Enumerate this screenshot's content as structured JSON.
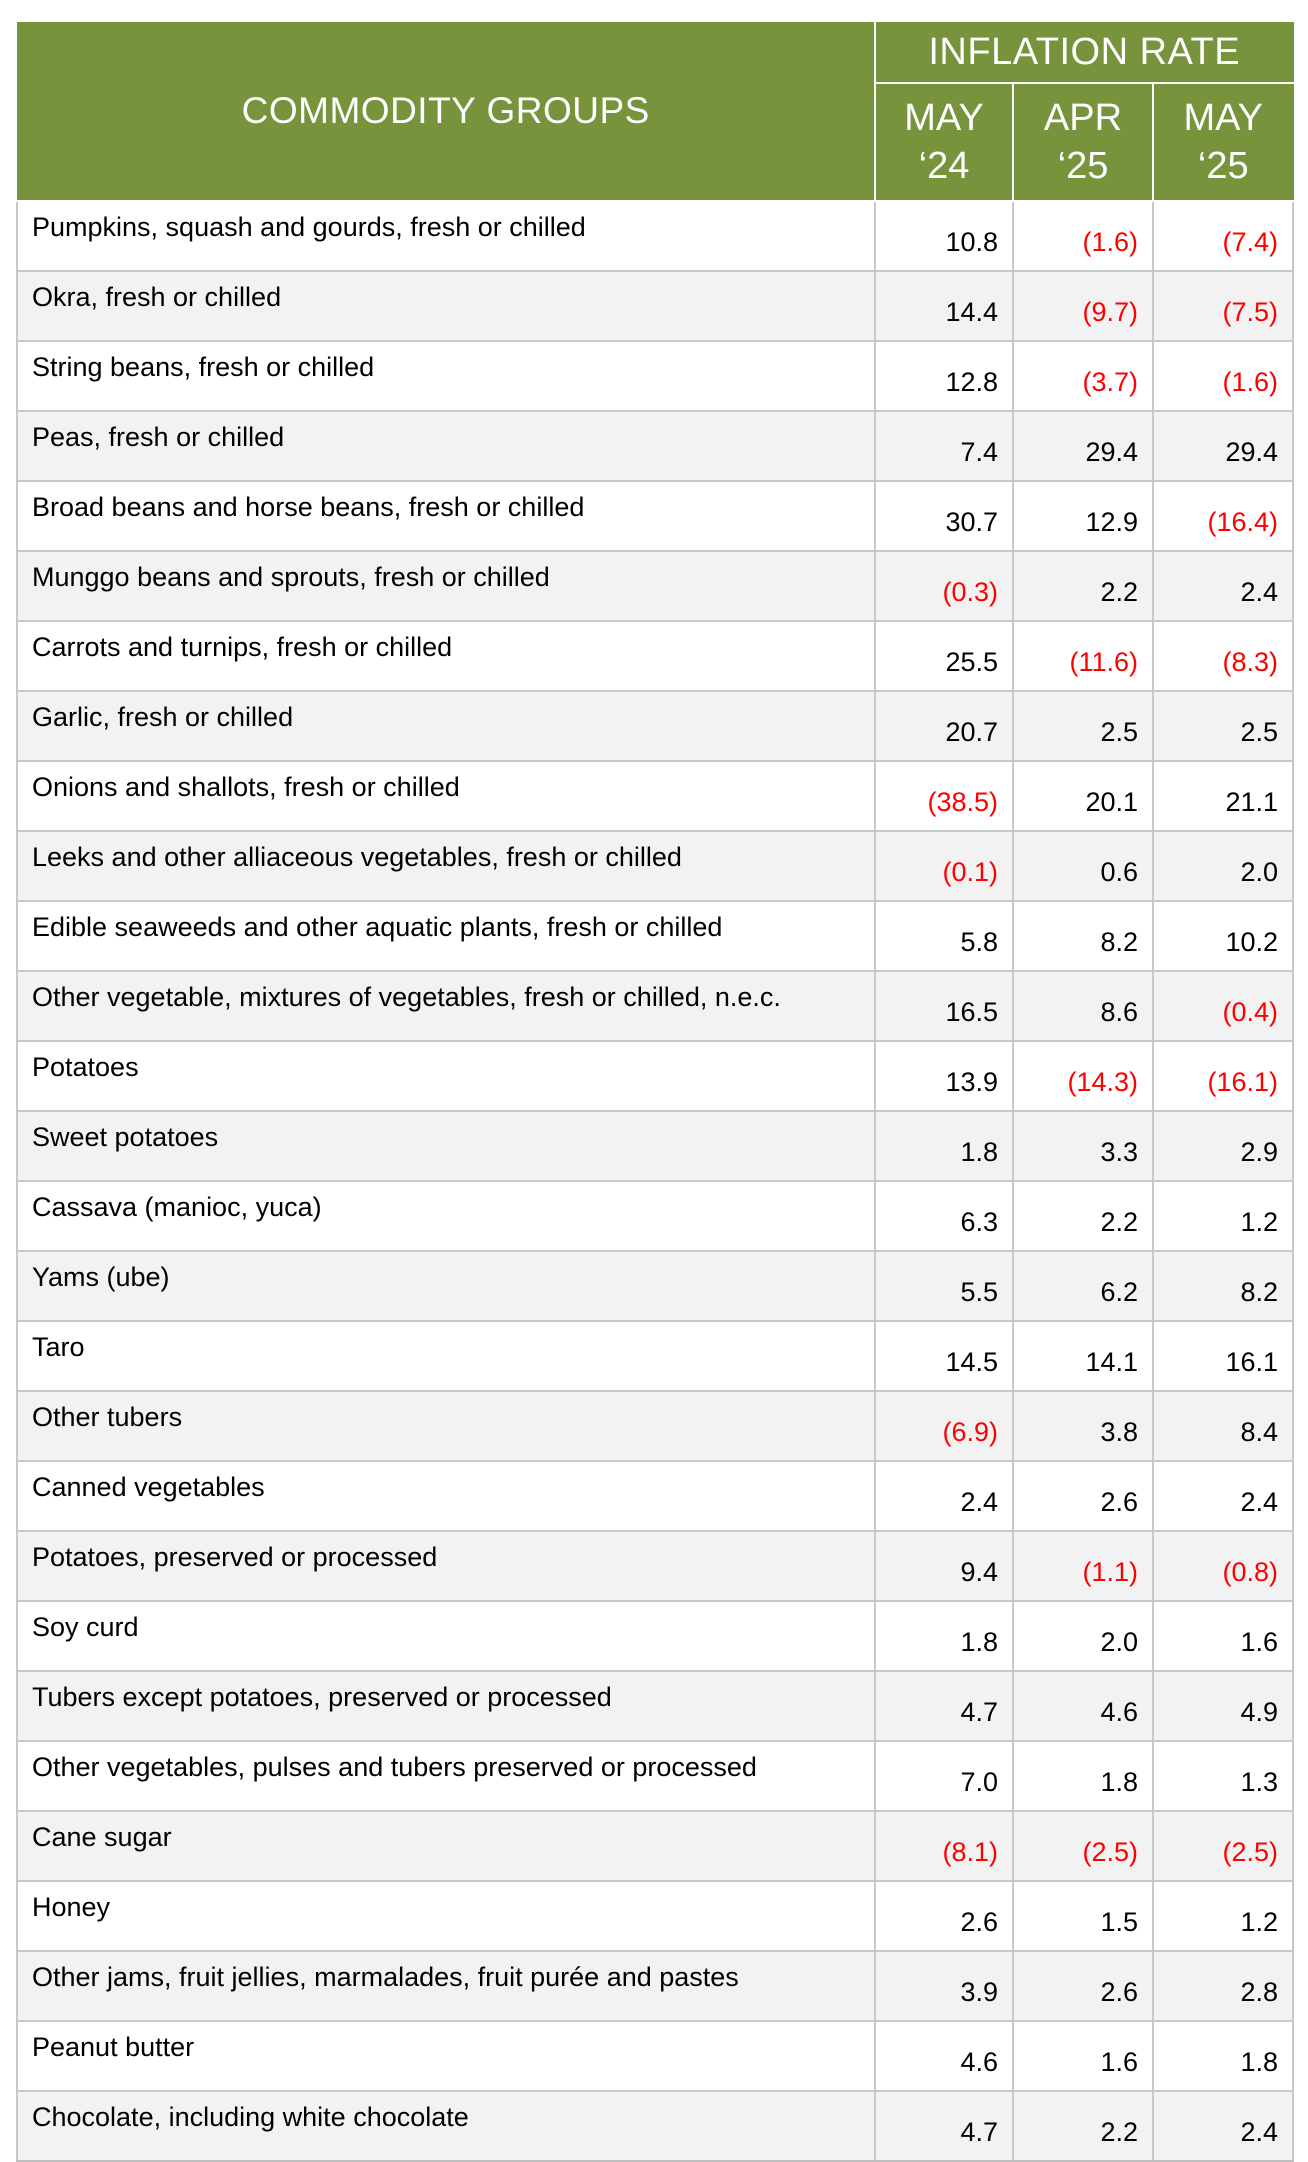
{
  "header": {
    "commodity_label": "COMMODITY GROUPS",
    "inflation_label": "INFLATION RATE",
    "periods": [
      {
        "line1": "MAY",
        "line2": "‘24"
      },
      {
        "line1": "APR",
        "line2": "‘25"
      },
      {
        "line1": "MAY",
        "line2": "‘25"
      }
    ]
  },
  "colors": {
    "header_bg": "#77933c",
    "header_text": "#ffffff",
    "negative": "#ff0000",
    "alt_row": "#f2f2f2"
  },
  "rows": [
    {
      "name": "Pumpkins, squash and gourds, fresh or chilled",
      "v": [
        "10.8",
        "(1.6)",
        "(7.4)"
      ]
    },
    {
      "name": "Okra, fresh or chilled",
      "v": [
        "14.4",
        "(9.7)",
        "(7.5)"
      ]
    },
    {
      "name": "String beans, fresh or chilled",
      "v": [
        "12.8",
        "(3.7)",
        "(1.6)"
      ]
    },
    {
      "name": "Peas, fresh or chilled",
      "v": [
        "7.4",
        "29.4",
        "29.4"
      ]
    },
    {
      "name": "Broad beans and horse beans, fresh or chilled",
      "v": [
        "30.7",
        "12.9",
        "(16.4)"
      ]
    },
    {
      "name": "Munggo beans and sprouts, fresh or chilled",
      "v": [
        "(0.3)",
        "2.2",
        "2.4"
      ]
    },
    {
      "name": "Carrots and turnips, fresh or chilled",
      "v": [
        "25.5",
        "(11.6)",
        "(8.3)"
      ]
    },
    {
      "name": "Garlic, fresh or chilled",
      "v": [
        "20.7",
        "2.5",
        "2.5"
      ]
    },
    {
      "name": "Onions and shallots, fresh or chilled",
      "v": [
        "(38.5)",
        "20.1",
        "21.1"
      ]
    },
    {
      "name": "Leeks and other alliaceous vegetables, fresh or chilled",
      "v": [
        "(0.1)",
        "0.6",
        "2.0"
      ]
    },
    {
      "name": "Edible seaweeds and other aquatic plants, fresh or chilled",
      "v": [
        "5.8",
        "8.2",
        "10.2"
      ]
    },
    {
      "name": "Other vegetable, mixtures of vegetables, fresh or chilled, n.e.c.",
      "v": [
        "16.5",
        "8.6",
        "(0.4)"
      ]
    },
    {
      "name": "Potatoes",
      "v": [
        "13.9",
        "(14.3)",
        "(16.1)"
      ]
    },
    {
      "name": "Sweet potatoes",
      "v": [
        "1.8",
        "3.3",
        "2.9"
      ]
    },
    {
      "name": "Cassava (manioc, yuca)",
      "v": [
        "6.3",
        "2.2",
        "1.2"
      ]
    },
    {
      "name": "Yams (ube)",
      "v": [
        "5.5",
        "6.2",
        "8.2"
      ]
    },
    {
      "name": "Taro",
      "v": [
        "14.5",
        "14.1",
        "16.1"
      ]
    },
    {
      "name": "Other tubers",
      "v": [
        "(6.9)",
        "3.8",
        "8.4"
      ]
    },
    {
      "name": "Canned vegetables",
      "v": [
        "2.4",
        "2.6",
        "2.4"
      ]
    },
    {
      "name": "Potatoes, preserved or processed",
      "v": [
        "9.4",
        "(1.1)",
        "(0.8)"
      ]
    },
    {
      "name": "Soy curd",
      "v": [
        "1.8",
        "2.0",
        "1.6"
      ]
    },
    {
      "name": "Tubers except potatoes, preserved or processed",
      "v": [
        "4.7",
        "4.6",
        "4.9"
      ]
    },
    {
      "name": "Other vegetables, pulses and tubers preserved or processed",
      "v": [
        "7.0",
        "1.8",
        "1.3"
      ]
    },
    {
      "name": "Cane sugar",
      "v": [
        "(8.1)",
        "(2.5)",
        "(2.5)"
      ]
    },
    {
      "name": "Honey",
      "v": [
        "2.6",
        "1.5",
        "1.2"
      ]
    },
    {
      "name": "Other jams, fruit jellies, marmalades, fruit purée and pastes",
      "v": [
        "3.9",
        "2.6",
        "2.8"
      ]
    },
    {
      "name": "Peanut butter",
      "v": [
        "4.6",
        "1.6",
        "1.8"
      ]
    },
    {
      "name": "Chocolate, including white chocolate",
      "v": [
        "4.7",
        "2.2",
        "2.4"
      ]
    }
  ]
}
